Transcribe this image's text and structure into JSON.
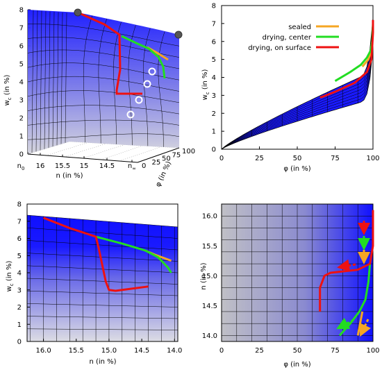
{
  "colors": {
    "sealed": "#f5a623",
    "center": "#22dd22",
    "surface": "#ee1111",
    "surface_blue": "#1a1aff",
    "surface_grey": "#c8c8d2"
  },
  "chart_data": [
    {
      "panel": "top-left",
      "type": "surface3d",
      "zlabel": "w",
      "zlabel_sub": "c",
      "zlabel_unit": " (in %)",
      "xlabel": "n (in %)",
      "ylabel": "φ (in %)",
      "z_ticks": [
        "0",
        "1",
        "2",
        "3",
        "4",
        "5",
        "6",
        "7",
        "8"
      ],
      "n_ticks": [
        "n",
        "16",
        "15.5",
        "15",
        "14.5",
        "n"
      ],
      "n_end_subs": [
        "0",
        "∞"
      ],
      "phi_ticks": [
        "0",
        "25",
        "50",
        "75",
        "100"
      ]
    },
    {
      "panel": "top-right",
      "type": "line",
      "xlabel": "φ (in %)",
      "ylabel": "w",
      "ylabel_sub": "c",
      "ylabel_unit": " (in %)",
      "xlim": [
        0,
        100
      ],
      "ylim": [
        0,
        8
      ],
      "x_ticks": [
        "0",
        "25",
        "50",
        "75",
        "100"
      ],
      "y_ticks": [
        "0",
        "1",
        "2",
        "3",
        "4",
        "5",
        "6",
        "7",
        "8"
      ],
      "legend": [
        "sealed",
        "drying, center",
        "drying, on surface"
      ],
      "legend_position": "top-right",
      "series": [
        {
          "name": "sealed",
          "x": [
            93,
            95,
            97,
            98.5,
            99.5
          ],
          "y": [
            4.6,
            4.8,
            5.0,
            5.4,
            6.0
          ]
        },
        {
          "name": "drying, center",
          "x": [
            75,
            85,
            92,
            96,
            98.5,
            99.5,
            100
          ],
          "y": [
            3.8,
            4.3,
            4.7,
            5.1,
            5.5,
            6.0,
            7.0
          ]
        },
        {
          "name": "drying, on surface",
          "x": [
            65,
            66,
            75,
            88,
            96,
            99,
            99.5,
            100,
            100
          ],
          "y": [
            2.9,
            2.9,
            3.2,
            3.7,
            4.3,
            5.0,
            5.7,
            6.5,
            7.2
          ]
        }
      ]
    },
    {
      "panel": "bottom-left",
      "type": "line",
      "xlabel": "n (in %)",
      "ylabel": "w",
      "ylabel_sub": "c",
      "ylabel_unit": " (in %)",
      "xlim": [
        16.25,
        13.95
      ],
      "ylim": [
        0,
        8
      ],
      "x_ticks": [
        "16.0",
        "15.5",
        "15.0",
        "14.5",
        "14.0"
      ],
      "y_ticks": [
        "0",
        "1",
        "2",
        "3",
        "4",
        "5",
        "6",
        "7",
        "8"
      ],
      "series": [
        {
          "name": "sealed",
          "x": [
            14.45,
            14.3,
            14.05
          ],
          "y": [
            5.3,
            5.05,
            4.7
          ]
        },
        {
          "name": "drying, center",
          "x": [
            15.2,
            14.8,
            14.45,
            14.25,
            14.1,
            14.05
          ],
          "y": [
            6.1,
            5.7,
            5.3,
            4.9,
            4.3,
            4.0
          ]
        },
        {
          "name": "drying, on surface",
          "x": [
            16.0,
            15.6,
            15.2,
            15.15,
            15.05,
            15.0,
            14.9,
            14.7,
            14.4
          ],
          "y": [
            7.2,
            6.6,
            6.1,
            5.3,
            3.5,
            3.0,
            2.95,
            3.05,
            3.2
          ]
        }
      ]
    },
    {
      "panel": "bottom-right",
      "type": "heatmap",
      "xlabel": "φ (in %)",
      "ylabel": "n (in %)",
      "xlim": [
        0,
        100
      ],
      "ylim": [
        13.9,
        16.2
      ],
      "x_ticks": [
        "0",
        "25",
        "50",
        "75",
        "100"
      ],
      "y_ticks": [
        "14.0",
        "14.5",
        "15.0",
        "15.5",
        "16.0"
      ],
      "series": [
        {
          "name": "sealed",
          "x": [
            93,
            90
          ],
          "y": [
            14.4,
            14.0
          ]
        },
        {
          "name": "drying, center",
          "x": [
            98,
            97,
            95,
            91,
            85,
            78
          ],
          "y": [
            15.2,
            14.9,
            14.6,
            14.4,
            14.2,
            14.0
          ]
        },
        {
          "name": "drying, on surface",
          "x": [
            100,
            100,
            98,
            90,
            72,
            68,
            65,
            65
          ],
          "y": [
            16.1,
            15.5,
            15.2,
            15.1,
            15.05,
            15.0,
            14.8,
            14.4
          ]
        }
      ]
    }
  ]
}
